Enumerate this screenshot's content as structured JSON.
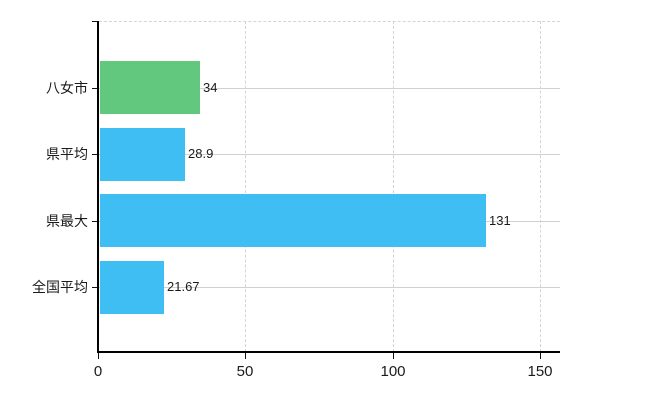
{
  "chart_data": {
    "type": "bar",
    "orientation": "horizontal",
    "title": "",
    "xlabel": "",
    "ylabel": "",
    "categories": [
      "八女市",
      "県平均",
      "県最大",
      "全国平均"
    ],
    "series": [
      {
        "name": "",
        "values": [
          34,
          28.9,
          131,
          21.67
        ]
      }
    ],
    "value_labels": [
      "34",
      "28.9",
      "131",
      "21.67"
    ],
    "bar_colors": [
      "#62c87e",
      "#3ebef2",
      "#3ebef2",
      "#3ebef2"
    ],
    "x_ticks": [
      0,
      50,
      100,
      150
    ],
    "x_tick_labels": [
      "0",
      "50",
      "100",
      "150"
    ],
    "xlim": [
      0,
      157
    ],
    "legend": "none",
    "grid": {
      "horizontal_category_lines": "solid",
      "vertical_value_lines": "dashed",
      "top_border": "dashed"
    },
    "colors": {
      "background": "#ffffff",
      "axis": "#000000",
      "category_gridline": "#ccd4cc",
      "value_gridline": "#d6d2db",
      "text": "#1b1b1b",
      "bar_highlight": "#62c87e",
      "bar_default": "#3ebef2"
    }
  }
}
